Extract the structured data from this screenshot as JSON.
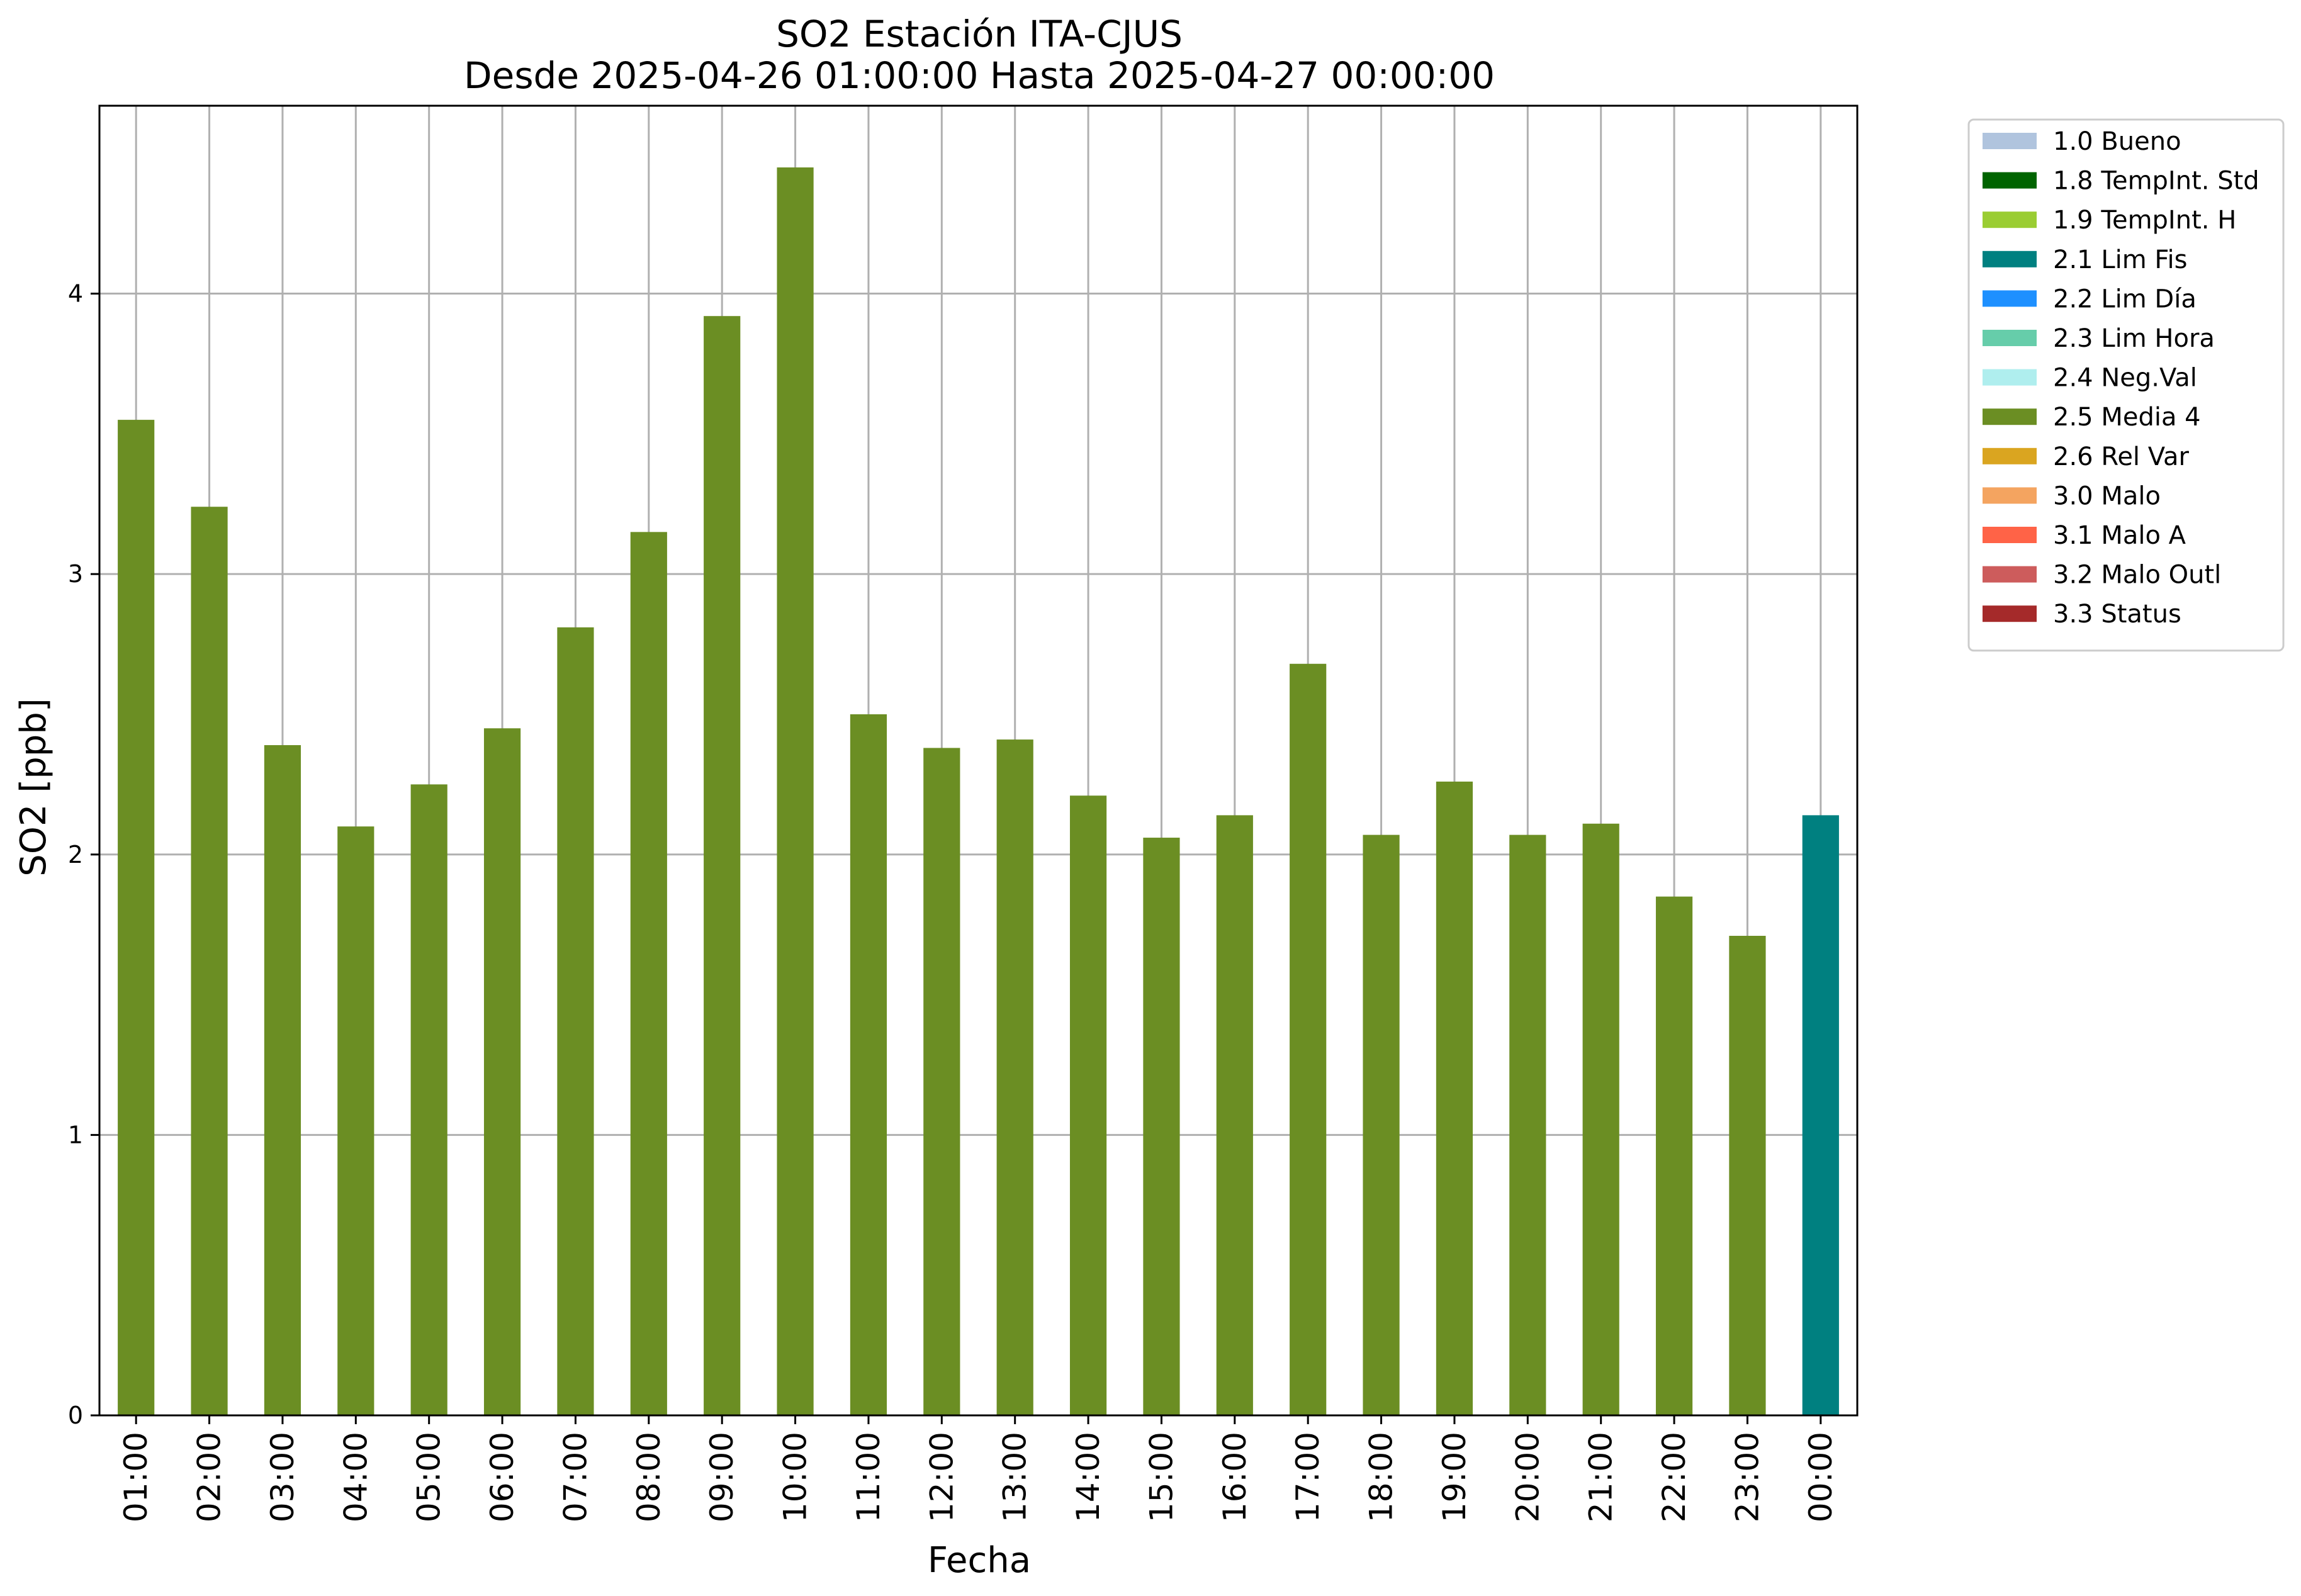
{
  "chart_data": {
    "type": "bar",
    "title": "SO2 Estación ITA-CJUS",
    "subtitle": "Desde 2025-04-26 01:00:00 Hasta 2025-04-27 00:00:00",
    "xlabel": "Fecha",
    "ylabel": "SO2 [ppb]",
    "ylim": [
      0,
      4.67
    ],
    "yticks": [
      "0",
      "1",
      "2",
      "3",
      "4"
    ],
    "grid": true,
    "legend_position": "right, outside plot area, top",
    "categories": [
      "01:00",
      "02:00",
      "03:00",
      "04:00",
      "05:00",
      "06:00",
      "07:00",
      "08:00",
      "09:00",
      "10:00",
      "11:00",
      "12:00",
      "13:00",
      "14:00",
      "15:00",
      "16:00",
      "17:00",
      "18:00",
      "19:00",
      "20:00",
      "21:00",
      "22:00",
      "23:00",
      "00:00"
    ],
    "values": [
      3.55,
      3.24,
      2.39,
      2.1,
      2.25,
      2.45,
      2.81,
      3.15,
      3.92,
      4.45,
      2.5,
      2.38,
      2.41,
      2.21,
      2.06,
      2.14,
      2.68,
      2.07,
      2.26,
      2.07,
      2.11,
      1.85,
      1.71,
      2.14
    ],
    "bar_flags": [
      "2.5 Media 4",
      "2.5 Media 4",
      "2.5 Media 4",
      "2.5 Media 4",
      "2.5 Media 4",
      "2.5 Media 4",
      "2.5 Media 4",
      "2.5 Media 4",
      "2.5 Media 4",
      "2.5 Media 4",
      "2.5 Media 4",
      "2.5 Media 4",
      "2.5 Media 4",
      "2.5 Media 4",
      "2.5 Media 4",
      "2.5 Media 4",
      "2.5 Media 4",
      "2.5 Media 4",
      "2.5 Media 4",
      "2.5 Media 4",
      "2.5 Media 4",
      "2.5 Media 4",
      "2.5 Media 4",
      "2.1 Lim Fis"
    ],
    "legend": [
      {
        "label": "1.0 Bueno",
        "color": "#b0c4de"
      },
      {
        "label": "1.8 TempInt. Std",
        "color": "#006400"
      },
      {
        "label": "1.9 TempInt. H",
        "color": "#9acd32"
      },
      {
        "label": "2.1 Lim Fis",
        "color": "#008080"
      },
      {
        "label": "2.2 Lim Día",
        "color": "#1e90ff"
      },
      {
        "label": "2.3 Lim Hora",
        "color": "#66cdaa"
      },
      {
        "label": "2.4 Neg.Val",
        "color": "#afeeee"
      },
      {
        "label": "2.5 Media 4",
        "color": "#6b8e23"
      },
      {
        "label": "2.6 Rel Var",
        "color": "#daa520"
      },
      {
        "label": "3.0 Malo",
        "color": "#f4a460"
      },
      {
        "label": "3.1 Malo A",
        "color": "#ff6347"
      },
      {
        "label": "3.2 Malo Outl",
        "color": "#cd5c5c"
      },
      {
        "label": "3.3 Status",
        "color": "#a52a2a"
      }
    ]
  }
}
